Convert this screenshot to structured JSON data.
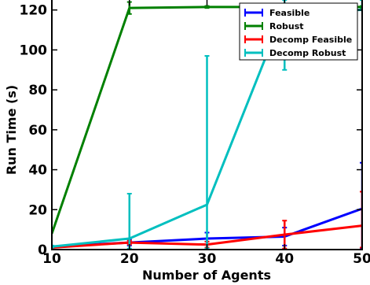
{
  "chart_data": {
    "type": "line",
    "title": "",
    "xlabel": "Number of Agents",
    "ylabel": "Run Time (s)",
    "x": [
      10,
      20,
      30,
      40,
      50
    ],
    "xlim": [
      10,
      50
    ],
    "ylim": [
      0,
      125
    ],
    "xticks": [
      10,
      20,
      30,
      40,
      50
    ],
    "yticks": [
      0,
      20,
      40,
      60,
      80,
      100,
      120
    ],
    "grid": false,
    "legend_position": "top-right",
    "series": [
      {
        "name": "Feasible",
        "color": "#0000ff",
        "values": [
          1.5,
          3.5,
          5.5,
          6.5,
          20.5
        ],
        "err_low": [
          0.5,
          1.5,
          3.0,
          4.5,
          20.0
        ],
        "err_high": [
          0.5,
          1.5,
          3.0,
          4.5,
          23.0
        ]
      },
      {
        "name": "Robust",
        "color": "#008000",
        "values": [
          8,
          121,
          121.5,
          121.5,
          121.5
        ],
        "err_low": [
          0,
          3,
          0.5,
          0.5,
          0.5
        ],
        "err_high": [
          0,
          3,
          0.5,
          0.5,
          0.5
        ]
      },
      {
        "name": "Decomp Feasible",
        "color": "#ff0000",
        "values": [
          1,
          3.5,
          2.5,
          7.5,
          12
        ],
        "err_low": [
          0.5,
          1.0,
          1.5,
          7.0,
          11.0
        ],
        "err_high": [
          0.5,
          1.0,
          1.5,
          7.0,
          17.0
        ]
      },
      {
        "name": "Decomp Robust",
        "color": "#00bfbf",
        "values": [
          1.5,
          5.5,
          22.5,
          120,
          120
        ],
        "err_low": [
          0.5,
          5.0,
          22.0,
          30.0,
          0.0
        ],
        "err_high": [
          0.5,
          22.5,
          74.5,
          5.0,
          5.0
        ]
      }
    ]
  }
}
